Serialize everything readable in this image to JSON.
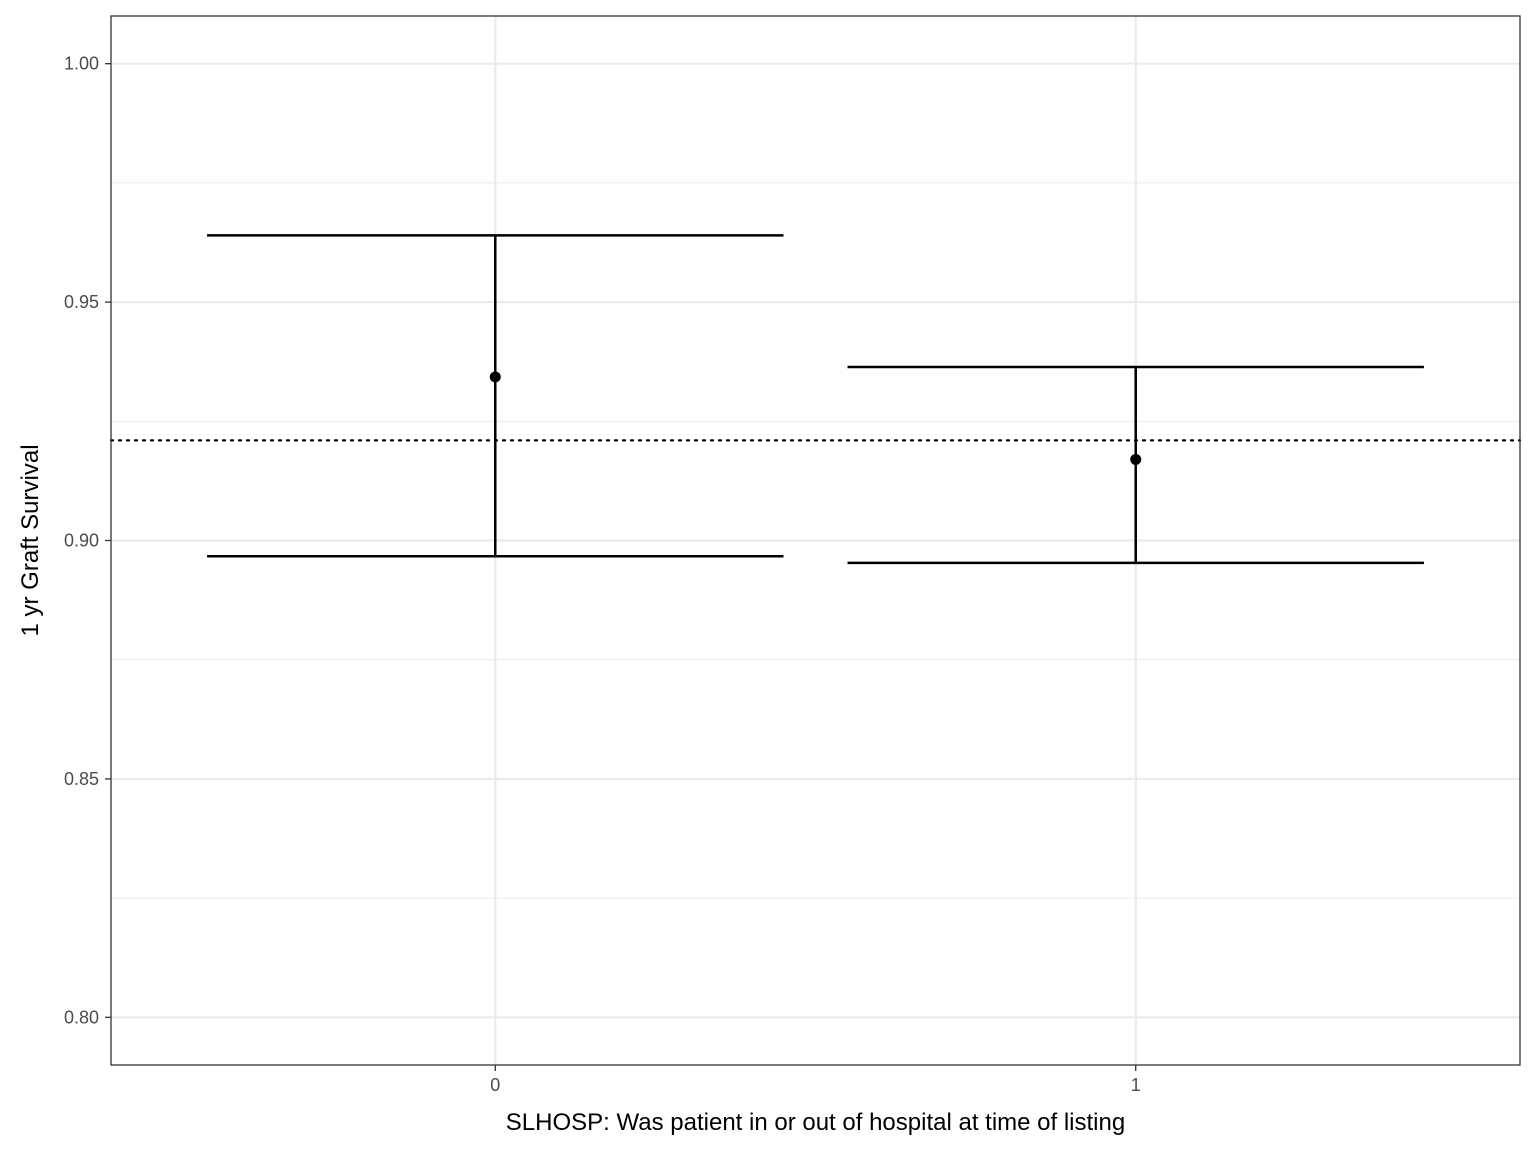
{
  "chart_data": {
    "type": "scatter",
    "title": "",
    "xlabel": "SLHOSP: Was patient in or out of hospital at time of listing",
    "ylabel": "1 yr Graft Survival",
    "categories": [
      "0",
      "1"
    ],
    "points": [
      {
        "x": "0",
        "y": 0.9343,
        "lower": 0.8967,
        "upper": 0.964
      },
      {
        "x": "1",
        "y": 0.917,
        "lower": 0.8953,
        "upper": 0.9364
      }
    ],
    "reference_line": {
      "y": 0.921,
      "style": "dotted"
    },
    "ylim": [
      0.79,
      1.01
    ],
    "yticks": [
      0.8,
      0.85,
      0.9,
      0.95,
      1.0
    ],
    "ytick_labels": [
      "0.80",
      "0.85",
      "0.90",
      "0.95",
      "1.00"
    ],
    "grid": true,
    "legend": "none",
    "colors": {
      "marks": "#000000",
      "grid": "#ebebeb",
      "panel_border": "#333333",
      "tick_text": "#4d4d4d"
    }
  }
}
